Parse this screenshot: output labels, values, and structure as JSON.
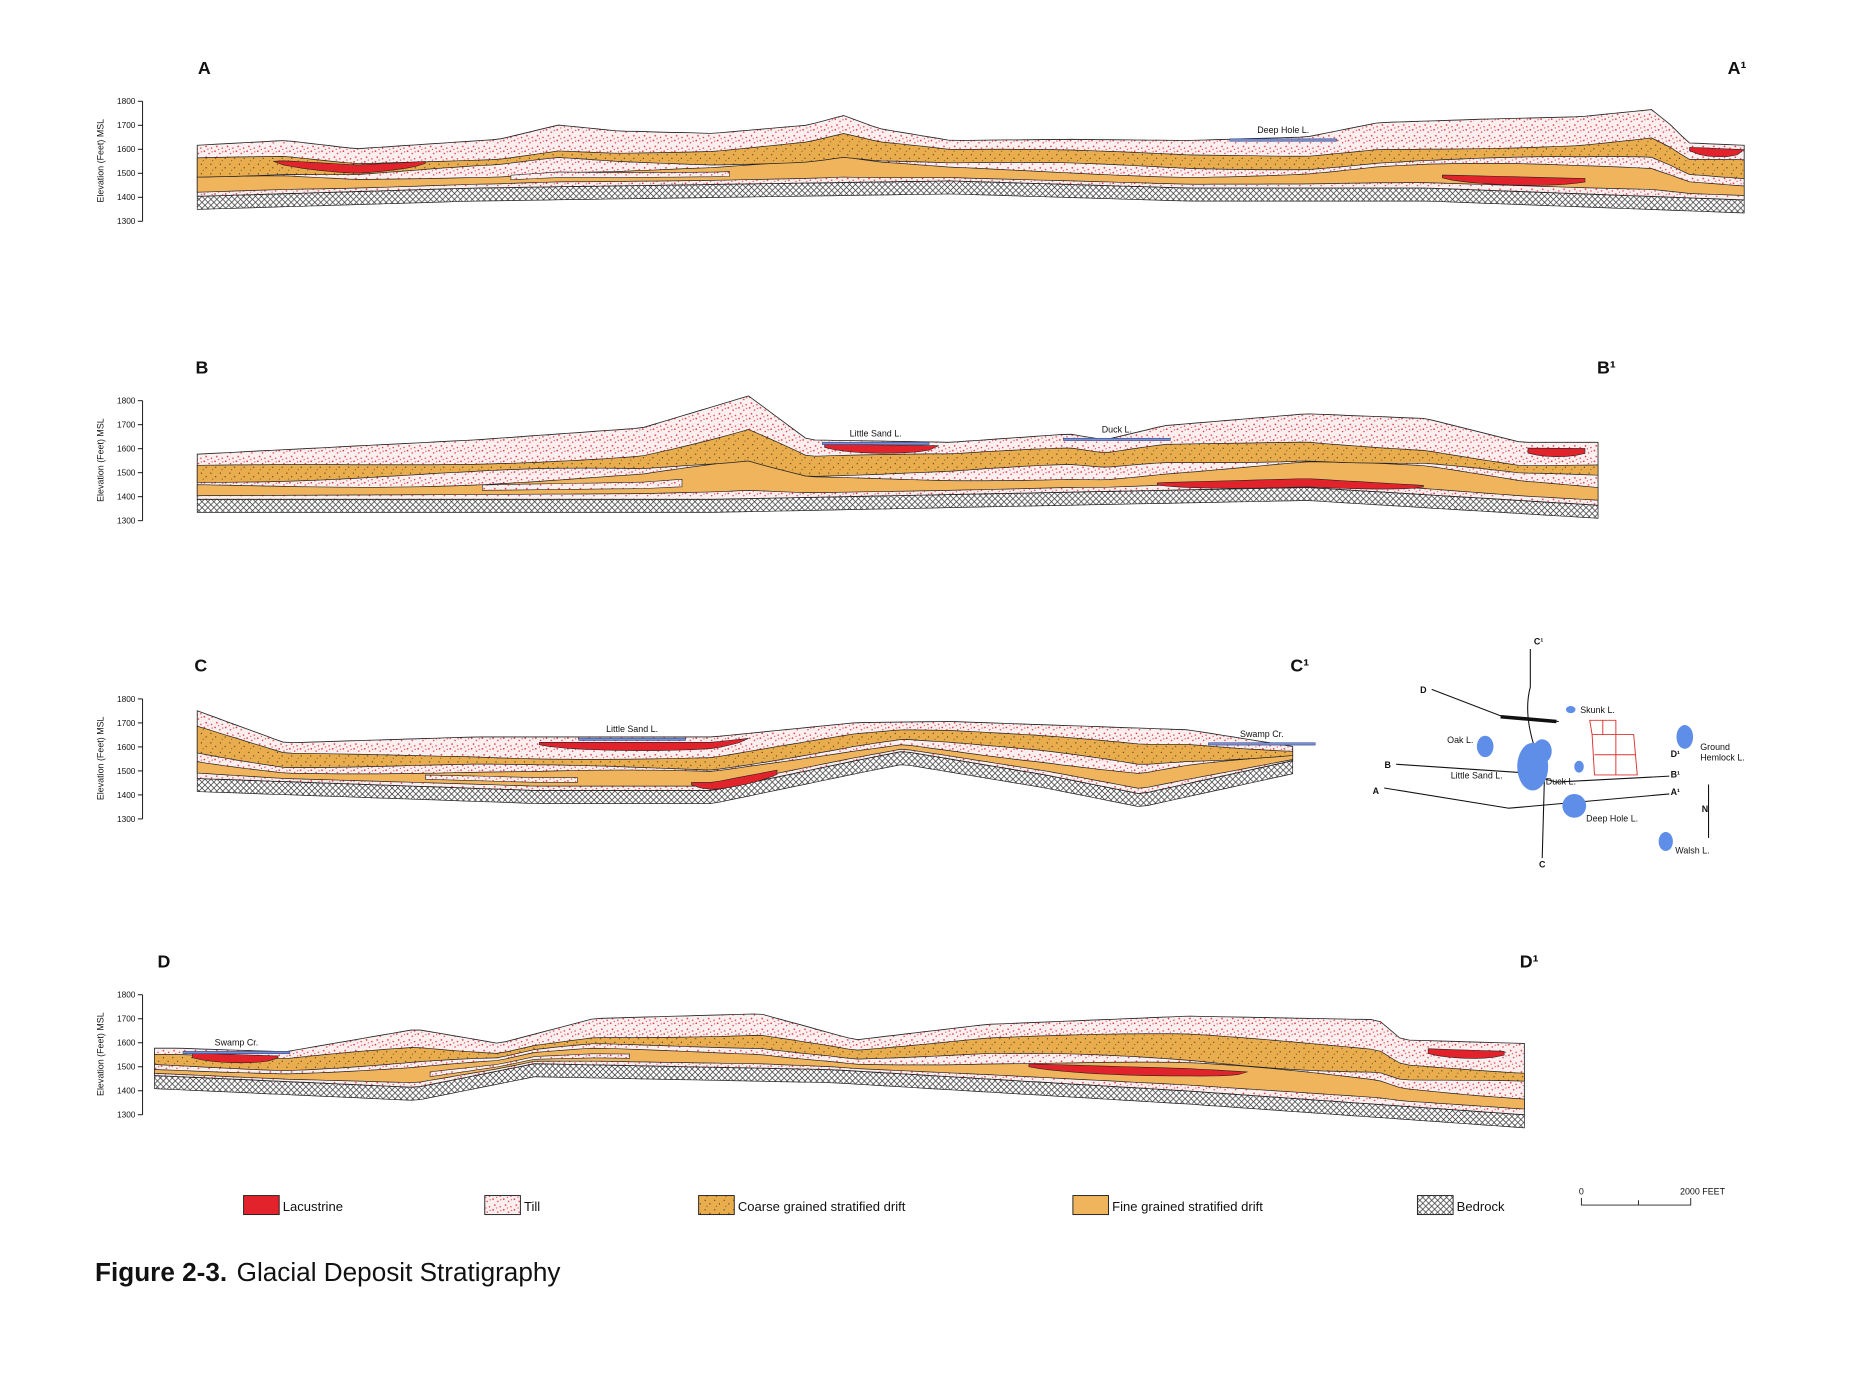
{
  "axis_title": "Elevation (Feet) MSL",
  "yticks": [
    "1800",
    "1700",
    "1600",
    "1500",
    "1400",
    "1300"
  ],
  "sections": [
    {
      "start": "A",
      "end": "A¹",
      "lakes": [
        "Deep Hole L."
      ]
    },
    {
      "start": "B",
      "end": "B¹",
      "lakes": [
        "Little Sand L.",
        "Duck L."
      ]
    },
    {
      "start": "C",
      "end": "C¹",
      "lakes": [
        "Little Sand L.",
        "Swamp Cr."
      ]
    },
    {
      "start": "D",
      "end": "D¹",
      "lakes": [
        "Swamp Cr."
      ]
    }
  ],
  "legend": [
    "Lacustrine",
    "Till",
    "Coarse grained stratified drift",
    "Fine grained stratified drift",
    "Bedrock"
  ],
  "scale": {
    "start": "0",
    "end": "2000 FEET"
  },
  "map_labels": [
    "C¹",
    "D",
    "Skunk L.",
    "Oak L.",
    "Ground",
    "Hemlock L.",
    "B",
    "D¹",
    "Little Sand L.",
    "Duck L.",
    "B¹",
    "A",
    "A¹",
    "N",
    "Deep Hole L.",
    "Walsh L.",
    "C"
  ],
  "caption": {
    "number": "Figure 2-3.",
    "title": "Glacial Deposit Stratigraphy"
  }
}
